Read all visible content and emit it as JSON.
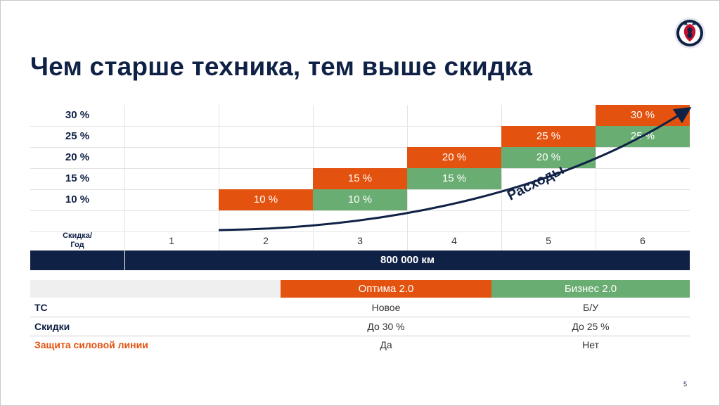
{
  "title": "Чем старше техника, тем выше скидка",
  "discount_chart": {
    "y_labels": [
      "30 %",
      "25 %",
      "20 %",
      "15 %",
      "10 %"
    ],
    "corner_label_line1": "Скидка/",
    "corner_label_line2": "Год",
    "years": [
      "1",
      "2",
      "3",
      "4",
      "5",
      "6"
    ],
    "cells": {
      "y2_10": "10 %",
      "y3_15": "15 %",
      "y3_10": "10 %",
      "y4_20": "20 %",
      "y4_15": "15 %",
      "y5_25": "25 %",
      "y5_20": "20 %",
      "y6_30": "30 %",
      "y6_25": "25 %"
    },
    "arrow_label": "Расходы",
    "mileage": "800 000 км"
  },
  "comparison": {
    "col1_header": "Оптима 2.0",
    "col2_header": "Бизнес 2.0",
    "rows": [
      {
        "label": "ТС",
        "col1": "Новое",
        "col2": "Б/У"
      },
      {
        "label": "Скидки",
        "col1": "До 30 %",
        "col2": "До 25 %"
      },
      {
        "label": "Защита силовой линии",
        "col1": "Да",
        "col2": "Нет"
      }
    ]
  },
  "colors": {
    "navy": "#0f2145",
    "orange": "#e4520f",
    "green": "#6aad72"
  },
  "page_number": "5"
}
